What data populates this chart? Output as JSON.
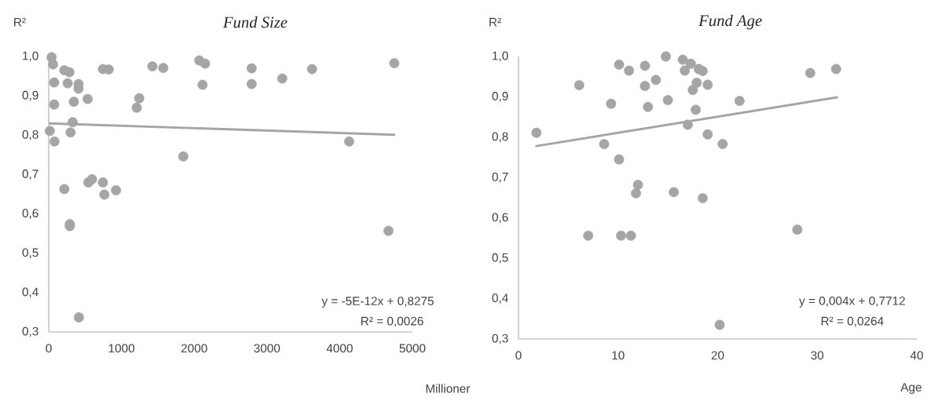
{
  "chart_data": [
    {
      "type": "scatter",
      "title": "Fund Size",
      "xlabel": "Millioner",
      "ylabel": "R²",
      "xlim": [
        0,
        5000
      ],
      "xticks": [
        0,
        1000,
        2000,
        3000,
        4000,
        5000
      ],
      "ylim": [
        0.3,
        1.0
      ],
      "yticks": [
        {
          "value": 0.3,
          "label": "0,3"
        },
        {
          "value": 0.4,
          "label": "0,4"
        },
        {
          "value": 0.5,
          "label": "0,5"
        },
        {
          "value": 0.6,
          "label": "0,6"
        },
        {
          "value": 0.7,
          "label": "0,7"
        },
        {
          "value": 0.8,
          "label": "0,8"
        },
        {
          "value": 0.9,
          "label": "0,9"
        },
        {
          "value": 1.0,
          "label": "1,0"
        }
      ],
      "series": [
        {
          "color": "#a5a5a5",
          "x": [
            40,
            60,
            215,
            285,
            745,
            825,
            1425,
            1575,
            2070,
            2150,
            2790,
            2790,
            2115,
            75,
            260,
            410,
            410,
            75,
            345,
            535,
            1245,
            1210,
            330,
            15,
            300,
            80,
            1850,
            215,
            545,
            595,
            745,
            765,
            925,
            290,
            290,
            415,
            3210,
            3620,
            4750,
            4130,
            4670
          ],
          "values": [
            0.998,
            0.98,
            0.965,
            0.96,
            0.968,
            0.967,
            0.975,
            0.971,
            0.99,
            0.982,
            0.97,
            0.93,
            0.928,
            0.934,
            0.932,
            0.93,
            0.918,
            0.878,
            0.885,
            0.892,
            0.894,
            0.87,
            0.833,
            0.811,
            0.807,
            0.784,
            0.746,
            0.663,
            0.68,
            0.688,
            0.68,
            0.649,
            0.66,
            0.574,
            0.569,
            0.337,
            0.944,
            0.968,
            0.983,
            0.784,
            0.557
          ]
        },
        {
          "type": "line",
          "color": "#a5a5a5",
          "x": [
            15,
            4750
          ],
          "values": [
            0.83,
            0.801
          ]
        }
      ],
      "annotations": [
        "y = -5E-12x + 0,8275",
        "R² = 0,0026"
      ]
    },
    {
      "type": "scatter",
      "title": "Fund Age",
      "xlabel": "Age",
      "ylabel": "R²",
      "xlim": [
        0,
        40
      ],
      "xticks": [
        0,
        10,
        20,
        30,
        40
      ],
      "ylim": [
        0.3,
        1.0
      ],
      "yticks": [
        {
          "value": 0.3,
          "label": "0,3"
        },
        {
          "value": 0.4,
          "label": "0,4"
        },
        {
          "value": 0.5,
          "label": "0,5"
        },
        {
          "value": 0.6,
          "label": "0,6"
        },
        {
          "value": 0.7,
          "label": "0,7"
        },
        {
          "value": 0.8,
          "label": "0,8"
        },
        {
          "value": 0.9,
          "label": "0,9"
        },
        {
          "value": 1.0,
          "label": "1,0"
        }
      ],
      "series": [
        {
          "color": "#a5a5a5",
          "x": [
            1.8,
            6.1,
            7.0,
            8.6,
            9.3,
            10.1,
            11.1,
            10.1,
            10.3,
            11.3,
            12.0,
            11.8,
            12.7,
            12.7,
            13.0,
            13.8,
            14.8,
            15.0,
            15.6,
            16.5,
            16.7,
            17.3,
            17.0,
            17.8,
            17.9,
            17.5,
            18.1,
            18.5,
            19.0,
            19.0,
            20.5,
            22.2,
            18.5,
            28.0,
            29.3,
            31.9,
            20.2
          ],
          "values": [
            0.811,
            0.929,
            0.556,
            0.783,
            0.883,
            0.98,
            0.965,
            0.745,
            0.556,
            0.556,
            0.682,
            0.661,
            0.977,
            0.927,
            0.875,
            0.942,
            1.0,
            0.892,
            0.664,
            0.992,
            0.965,
            0.982,
            0.831,
            0.868,
            0.935,
            0.917,
            0.969,
            0.964,
            0.93,
            0.807,
            0.783,
            0.89,
            0.649,
            0.571,
            0.959,
            0.969,
            0.335
          ]
        },
        {
          "type": "line",
          "color": "#a5a5a5",
          "x": [
            1.8,
            32
          ],
          "values": [
            0.778,
            0.899
          ]
        }
      ],
      "annotations": [
        "y = 0,004x + 0,7712",
        "R² = 0,0264"
      ]
    }
  ]
}
